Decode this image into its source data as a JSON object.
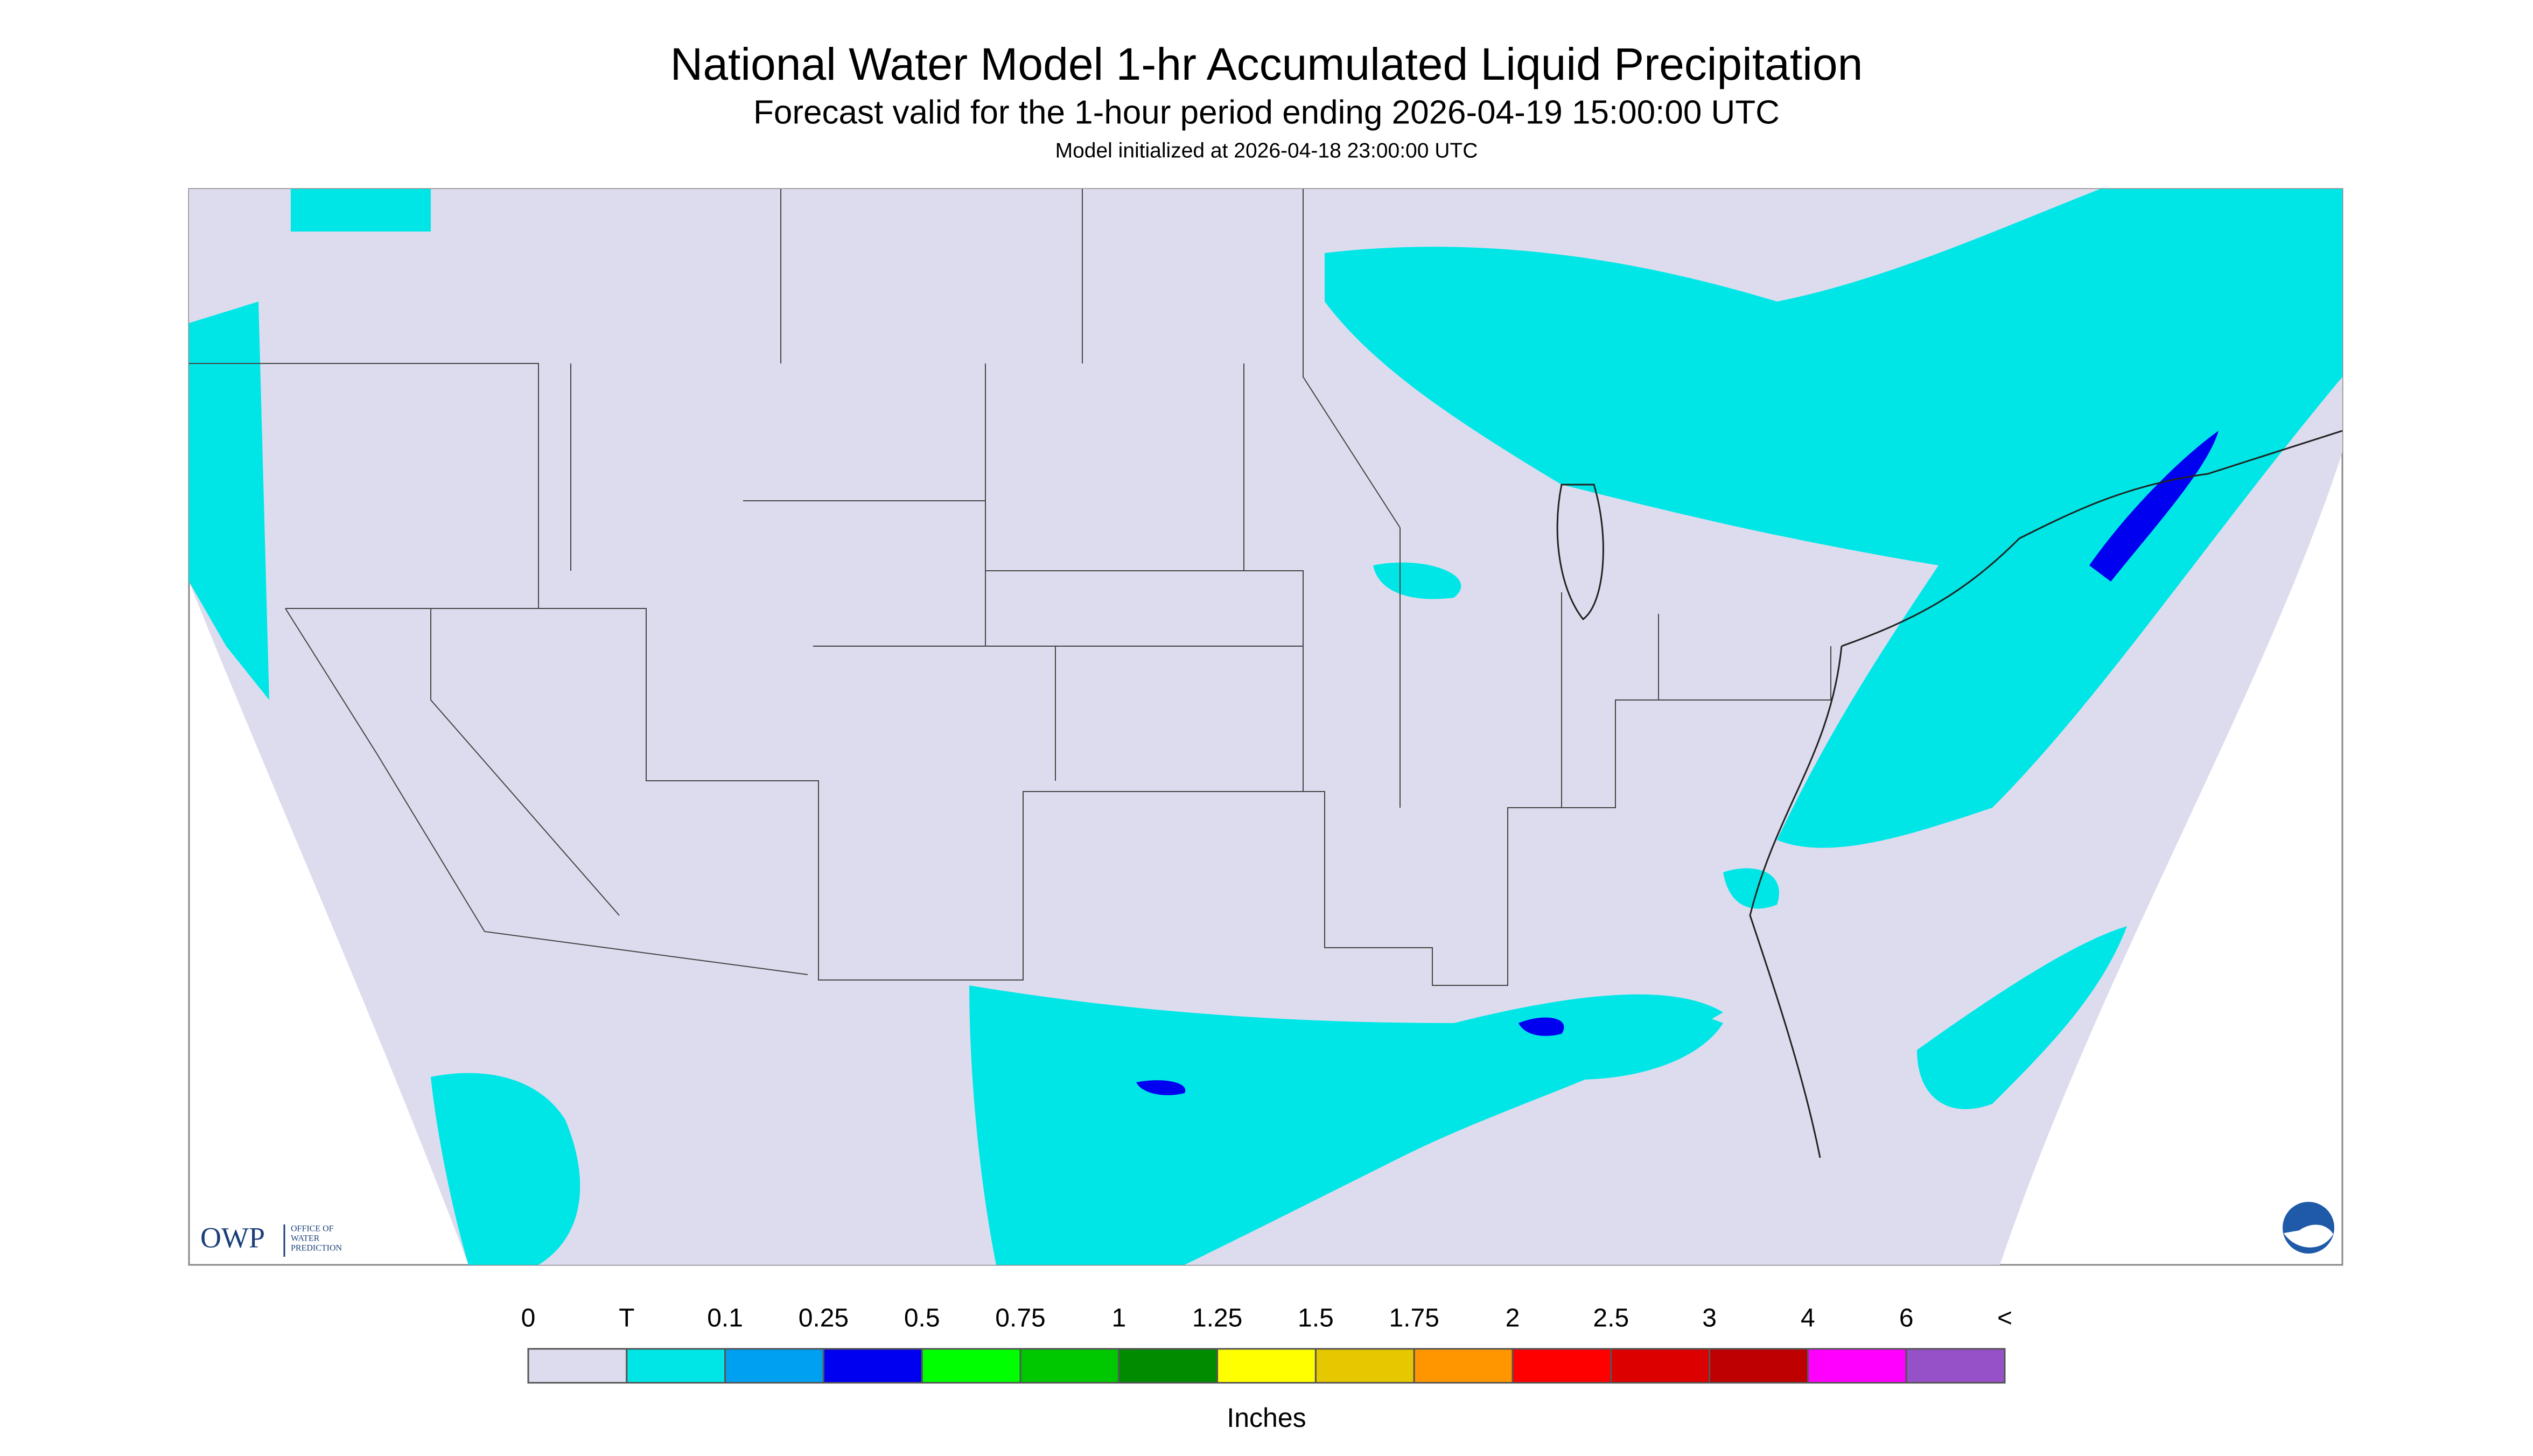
{
  "header": {
    "title": "National Water Model 1-hr Accumulated Liquid Precipitation",
    "subtitle": "Forecast valid for the 1-hour period ending 2026-04-19 15:00:00 UTC",
    "init": "Model initialized at 2026-04-18 23:00:00 UTC"
  },
  "logo": {
    "name": "OWP",
    "lines": [
      "OFFICE OF",
      "WATER",
      "PREDICTION"
    ]
  },
  "legend": {
    "labels": [
      "0",
      "T",
      "0.1",
      "0.25",
      "0.5",
      "0.75",
      "1",
      "1.25",
      "1.5",
      "1.75",
      "2",
      "2.5",
      "3",
      "4",
      "6",
      "<"
    ],
    "colors": [
      "#dcdcee",
      "#00e6e6",
      "#00a0f0",
      "#0000f0",
      "#00ff00",
      "#00c800",
      "#008c00",
      "#ffff00",
      "#e6c800",
      "#ff9600",
      "#ff0000",
      "#dc0000",
      "#be0000",
      "#ff00ff",
      "#9650c8"
    ],
    "unit": "Inches"
  }
}
